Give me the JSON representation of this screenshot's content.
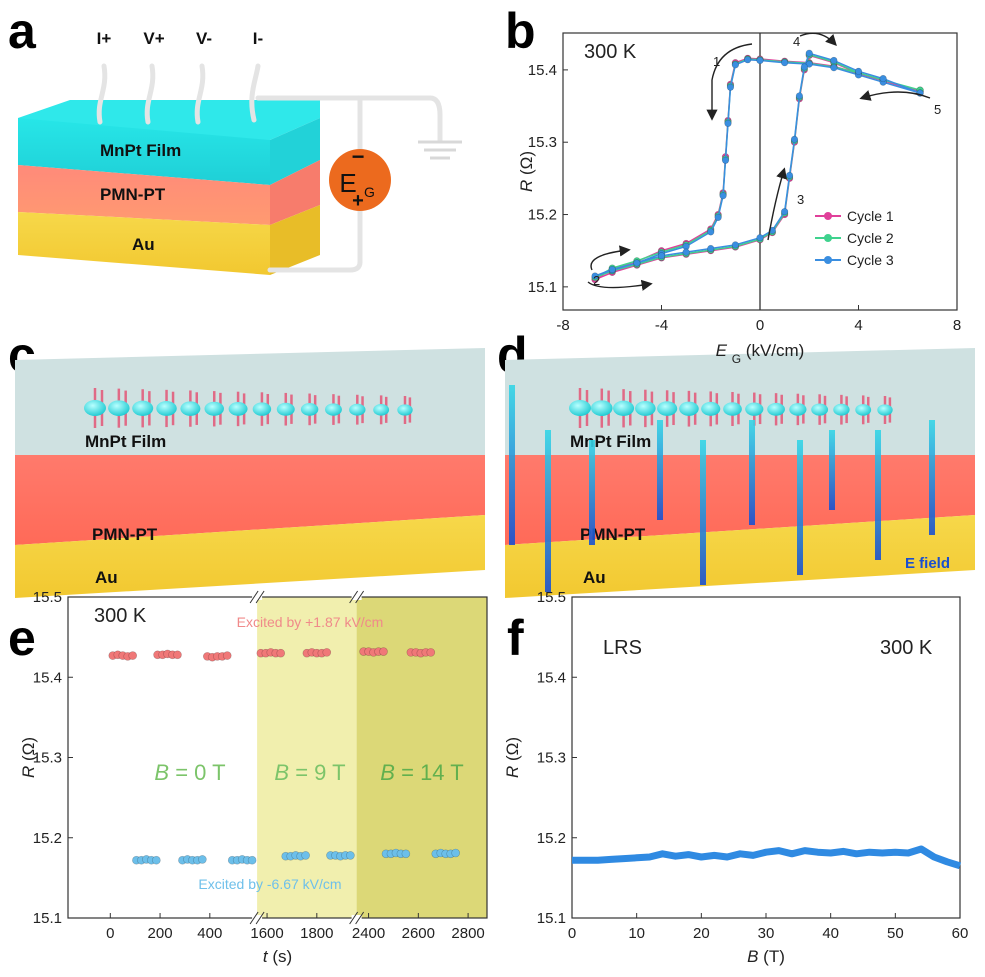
{
  "diagram_a": {
    "panel": "a",
    "terminals": [
      "I+",
      "V+",
      "V-",
      "I-"
    ],
    "layers": [
      "MnPt Film",
      "PMN-PT",
      "Au"
    ],
    "source": {
      "minus": "−",
      "symbol": "E",
      "subscript": "G",
      "plus": "+"
    }
  },
  "diagram_c": {
    "panel": "c",
    "layers": [
      "MnPt Film",
      "PMN-PT",
      "Au"
    ]
  },
  "diagram_d": {
    "panel": "d",
    "layers": [
      "MnPt Film",
      "PMN-PT",
      "Au"
    ],
    "field_label": "E field"
  },
  "chart_data": [
    {
      "panel": "b",
      "type": "line",
      "title": "300 K",
      "x_label": {
        "symbol": "E",
        "subscript": "G",
        "unit": "(kV/cm)"
      },
      "y_label": {
        "symbol": "R",
        "unit": "(Ω)"
      },
      "xlim": [
        -8,
        8
      ],
      "xticks": [
        -8,
        -4,
        0,
        4,
        8
      ],
      "ylim": [
        15.068,
        15.451
      ],
      "yticks": [
        15.1,
        15.2,
        15.3,
        15.4
      ],
      "zero_line": true,
      "markers": true,
      "legend": "lower right",
      "annotations": [
        "1",
        "2",
        "3",
        "4",
        "5"
      ],
      "x": [
        6.5,
        5,
        4,
        3,
        2,
        1,
        0,
        -0.5,
        -1,
        -1.2,
        -1.3,
        -1.4,
        -1.5,
        -1.7,
        -2,
        -3,
        -4,
        -5,
        -6,
        -6.7,
        -6,
        -5,
        -4,
        -3,
        -2,
        -1,
        0,
        0.5,
        1,
        1.2,
        1.4,
        1.6,
        1.8,
        2,
        3,
        4,
        5,
        6.5
      ],
      "series": [
        {
          "name": "Cycle 1",
          "color": "#e0409a",
          "values": [
            15.37,
            15.385,
            15.395,
            15.405,
            15.41,
            15.412,
            15.415,
            15.416,
            15.41,
            15.38,
            15.33,
            15.28,
            15.23,
            15.2,
            15.18,
            15.16,
            15.15,
            15.135,
            15.125,
            15.11,
            15.12,
            15.13,
            15.14,
            15.145,
            15.15,
            15.155,
            15.165,
            15.175,
            15.2,
            15.25,
            15.3,
            15.36,
            15.4,
            15.42,
            15.41,
            15.395,
            15.385,
            15.37
          ]
        },
        {
          "name": "Cycle 2",
          "color": "#3fd28e",
          "values": [
            15.372,
            15.386,
            15.396,
            15.404,
            15.409,
            15.411,
            15.414,
            15.415,
            15.408,
            15.378,
            15.328,
            15.277,
            15.228,
            15.198,
            15.178,
            15.158,
            15.148,
            15.136,
            15.126,
            15.113,
            15.122,
            15.131,
            15.141,
            15.146,
            15.151,
            15.156,
            15.166,
            15.176,
            15.202,
            15.252,
            15.302,
            15.362,
            15.402,
            15.421,
            15.411,
            15.396,
            15.386,
            15.372
          ]
        },
        {
          "name": "Cycle 3",
          "color": "#3a8ee0",
          "values": [
            15.368,
            15.383,
            15.393,
            15.403,
            15.408,
            15.41,
            15.413,
            15.414,
            15.407,
            15.376,
            15.326,
            15.275,
            15.226,
            15.196,
            15.176,
            15.156,
            15.146,
            15.133,
            15.123,
            15.115,
            15.124,
            15.133,
            15.143,
            15.148,
            15.153,
            15.158,
            15.168,
            15.178,
            15.204,
            15.254,
            15.304,
            15.364,
            15.404,
            15.423,
            15.413,
            15.398,
            15.388,
            15.368
          ]
        }
      ]
    },
    {
      "panel": "e",
      "type": "scatter",
      "title": "300 K",
      "x_label": {
        "symbol": "t",
        "unit": "(s)"
      },
      "y_label": {
        "symbol": "R",
        "unit": "(Ω)"
      },
      "ylim": [
        15.1,
        15.5
      ],
      "yticks": [
        15.1,
        15.2,
        15.3,
        15.4,
        15.5
      ],
      "x_segments": [
        {
          "xlim": [
            -170,
            590
          ],
          "xticks": [
            0,
            200,
            400
          ]
        },
        {
          "xlim": [
            1560,
            1960
          ],
          "xticks": [
            1600,
            1800
          ],
          "shade": "#f1efae"
        },
        {
          "xlim": [
            2352,
            2876
          ],
          "xticks": [
            2400,
            2600,
            2800
          ],
          "shade": "#dcd877"
        }
      ],
      "annotations": [
        {
          "text": "Excited by +1.87 kV/cm",
          "color": "#f08a8a"
        },
        {
          "text": "Excited by -6.67 kV/cm",
          "color": "#6fc0ea"
        }
      ],
      "field_labels": [
        {
          "symbol": "B",
          "text": "= 0 T",
          "color": "#7cc46a"
        },
        {
          "symbol": "B",
          "text": "= 9 T",
          "color": "#7cc46a"
        },
        {
          "symbol": "B",
          "text": "= 14 T",
          "color": "#62b04e"
        }
      ],
      "series": [
        {
          "color": "#f07878",
          "x": [
            10,
            30,
            50,
            70,
            90,
            190,
            210,
            230,
            250,
            270,
            390,
            410,
            430,
            450,
            470,
            1575,
            1595,
            1615,
            1635,
            1655,
            1760,
            1780,
            1800,
            1820,
            1840,
            2380,
            2400,
            2420,
            2440,
            2460,
            2570,
            2590,
            2610,
            2630,
            2650
          ],
          "values": [
            15.427,
            15.428,
            15.427,
            15.426,
            15.427,
            15.428,
            15.428,
            15.429,
            15.428,
            15.428,
            15.426,
            15.425,
            15.426,
            15.426,
            15.427,
            15.43,
            15.43,
            15.431,
            15.43,
            15.43,
            15.43,
            15.431,
            15.43,
            15.43,
            15.431,
            15.432,
            15.432,
            15.431,
            15.432,
            15.432,
            15.431,
            15.431,
            15.43,
            15.431,
            15.431
          ]
        },
        {
          "color": "#6cbfea",
          "x": [
            105,
            125,
            145,
            165,
            185,
            290,
            310,
            330,
            350,
            370,
            490,
            510,
            530,
            550,
            570,
            1675,
            1695,
            1715,
            1735,
            1755,
            1855,
            1875,
            1895,
            1915,
            1935,
            2470,
            2490,
            2510,
            2530,
            2550,
            2670,
            2690,
            2710,
            2730,
            2750
          ],
          "values": [
            15.172,
            15.172,
            15.173,
            15.172,
            15.172,
            15.172,
            15.173,
            15.172,
            15.172,
            15.173,
            15.172,
            15.172,
            15.173,
            15.172,
            15.172,
            15.177,
            15.177,
            15.178,
            15.177,
            15.178,
            15.178,
            15.178,
            15.177,
            15.178,
            15.178,
            15.18,
            15.18,
            15.181,
            15.18,
            15.18,
            15.18,
            15.181,
            15.18,
            15.18,
            15.181
          ]
        }
      ]
    },
    {
      "panel": "f",
      "type": "line",
      "title": "300 K",
      "annotations": [
        "LRS"
      ],
      "x_label": {
        "symbol": "B",
        "unit": "(T)"
      },
      "y_label": {
        "symbol": "R",
        "unit": "(Ω)"
      },
      "xlim": [
        0,
        60
      ],
      "xticks": [
        0,
        10,
        20,
        30,
        40,
        50,
        60
      ],
      "ylim": [
        15.1,
        15.5
      ],
      "yticks": [
        15.1,
        15.2,
        15.3,
        15.4,
        15.5
      ],
      "x": [
        0,
        2,
        4,
        6,
        8,
        10,
        12,
        14,
        16,
        18,
        20,
        22,
        24,
        26,
        28,
        30,
        32,
        34,
        36,
        38,
        40,
        42,
        44,
        46,
        48,
        50,
        52,
        54,
        56,
        58,
        60
      ],
      "series": [
        {
          "color": "#2f8ae2",
          "values": [
            15.172,
            15.172,
            15.172,
            15.173,
            15.174,
            15.175,
            15.176,
            15.18,
            15.177,
            15.179,
            15.176,
            15.178,
            15.176,
            15.18,
            15.178,
            15.182,
            15.184,
            15.18,
            15.184,
            15.182,
            15.181,
            15.183,
            15.18,
            15.182,
            15.181,
            15.182,
            15.181,
            15.186,
            15.176,
            15.17,
            15.165
          ]
        }
      ]
    }
  ]
}
